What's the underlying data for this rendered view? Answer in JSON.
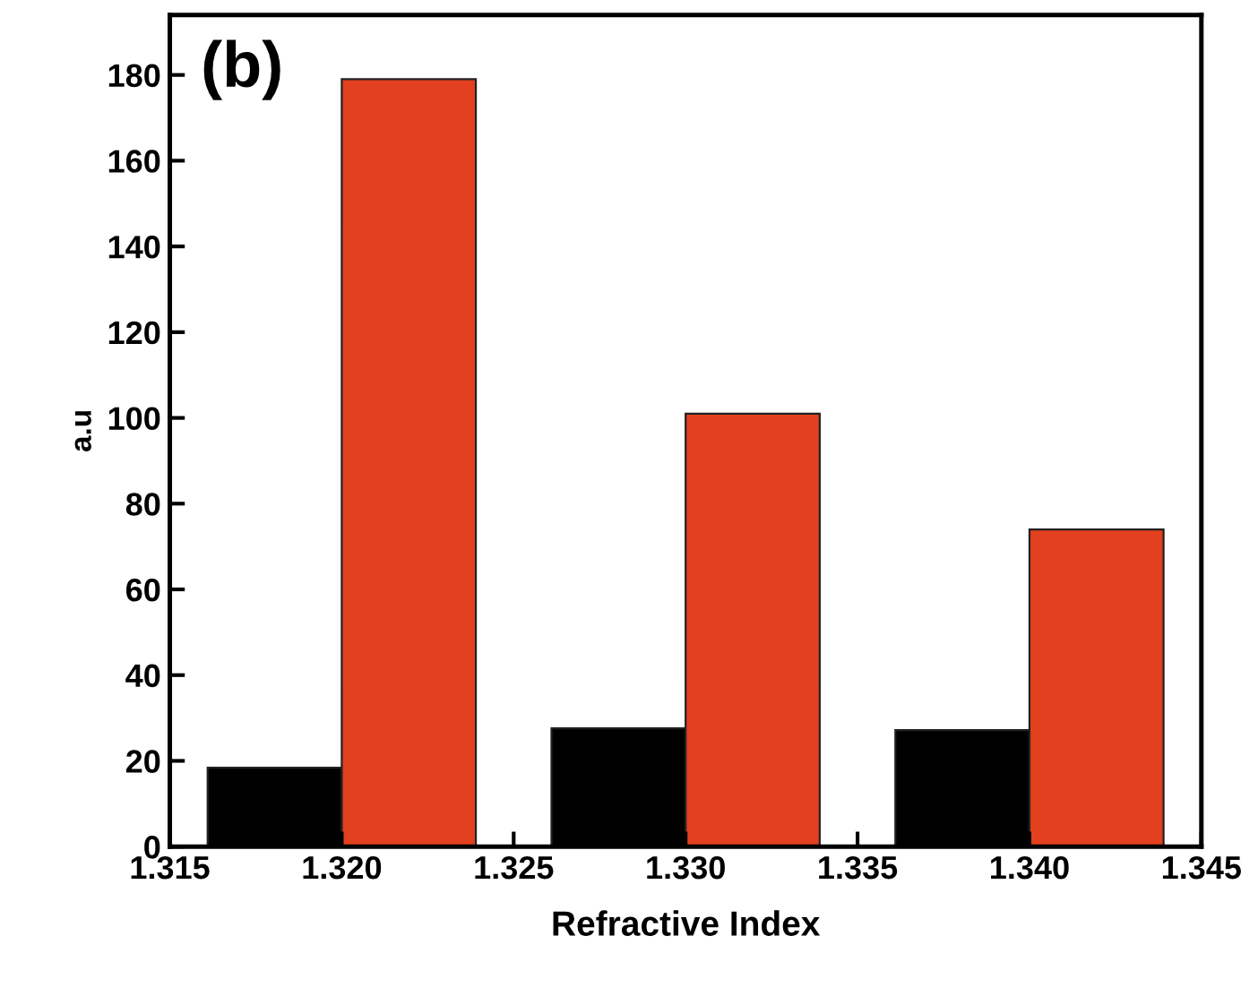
{
  "chart_data": {
    "type": "bar",
    "xlabel": "Refractive Index",
    "ylabel": "a.u",
    "annotations": [
      "(b)"
    ],
    "x": [
      1.32,
      1.33,
      1.34
    ],
    "series": [
      {
        "color": "#000000",
        "values": [
          18.4,
          27.6,
          27.2
        ]
      },
      {
        "color": "#e2401e",
        "values": [
          179,
          101,
          74
        ]
      }
    ],
    "xlim": [
      1.315,
      1.345
    ],
    "xticks": [
      {
        "value": 1.315,
        "label": "1.315"
      },
      {
        "value": 1.32,
        "label": "1.320"
      },
      {
        "value": 1.325,
        "label": "1.325"
      },
      {
        "value": 1.33,
        "label": "1.330"
      },
      {
        "value": 1.335,
        "label": "1.335"
      },
      {
        "value": 1.34,
        "label": "1.340"
      },
      {
        "value": 1.345,
        "label": "1.345"
      }
    ],
    "ylim": [
      0,
      194
    ],
    "yticks": [
      0,
      20,
      40,
      60,
      80,
      100,
      120,
      140,
      160,
      180
    ],
    "grid": false,
    "legend": false
  }
}
